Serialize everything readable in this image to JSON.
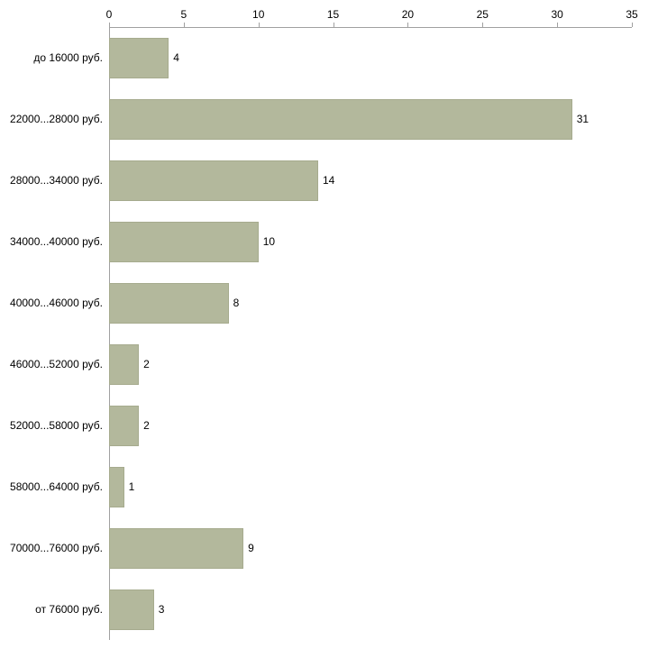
{
  "chart_data": {
    "type": "bar",
    "orientation": "horizontal",
    "title": "",
    "xlabel": "",
    "ylabel": "",
    "categories": [
      "до 16000 руб.",
      "22000...28000 руб.",
      "28000...34000 руб.",
      "34000...40000 руб.",
      "40000...46000 руб.",
      "46000...52000 руб.",
      "52000...58000 руб.",
      "58000...64000 руб.",
      "70000...76000 руб.",
      "от 76000 руб."
    ],
    "values": [
      4,
      31,
      14,
      10,
      8,
      2,
      2,
      1,
      9,
      3
    ],
    "xlim": [
      0,
      35
    ],
    "x_ticks": [
      0,
      5,
      10,
      15,
      20,
      25,
      30,
      35
    ],
    "grid": false,
    "legend": false,
    "value_labels": true,
    "colors": {
      "bar_fill": "#b3b89c",
      "bar_border": "#a6ab8e",
      "axis": "#a0a0a0",
      "text": "#000000",
      "background": "#ffffff"
    }
  }
}
